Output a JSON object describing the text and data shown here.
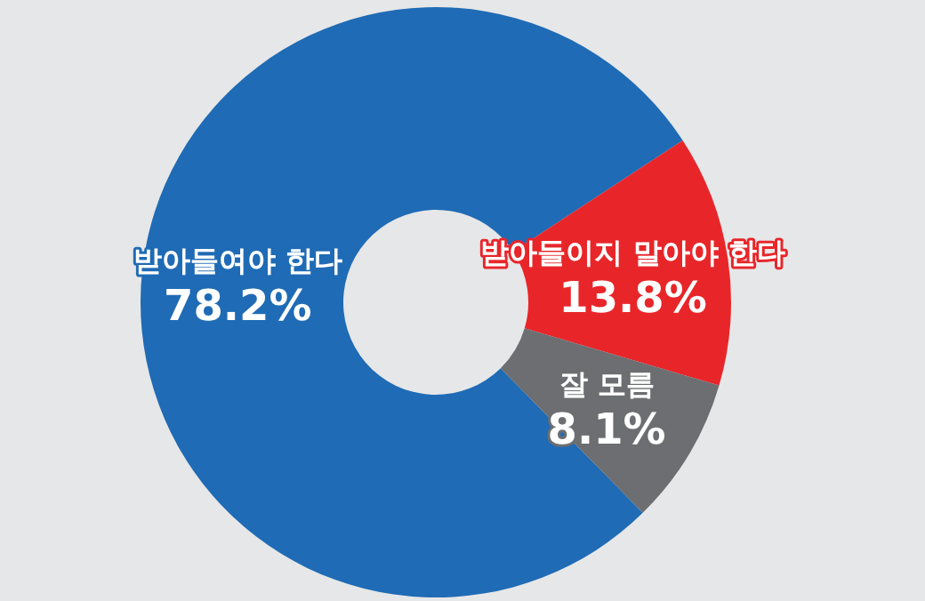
{
  "chart_data": {
    "type": "donut",
    "categories": [
      "받아들여야 한다",
      "받아들이지 말아야 한다",
      "잘 모름"
    ],
    "values": [
      78.2,
      13.8,
      8.1
    ],
    "colors": [
      "#1f6bb5",
      "#e8262a",
      "#6d6e71"
    ],
    "value_labels": [
      "78.2%",
      "13.8%",
      "8.1%"
    ],
    "legend": false
  }
}
